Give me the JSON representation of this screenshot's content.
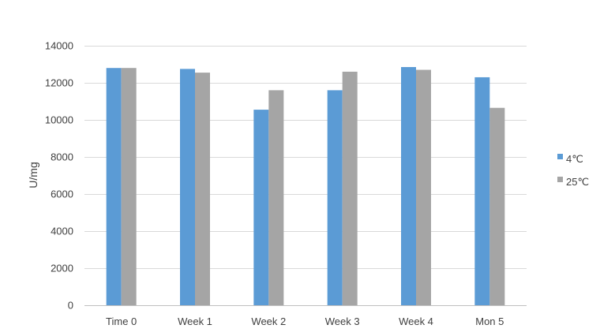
{
  "chart_data": {
    "type": "bar",
    "title": "",
    "xlabel": "",
    "ylabel": "U/mg",
    "ylim": [
      0,
      14000
    ],
    "yticks": [
      0,
      2000,
      4000,
      6000,
      8000,
      10000,
      12000,
      14000
    ],
    "grid": true,
    "legend_position": "right",
    "categories": [
      "Time 0",
      "Week 1",
      "Week 2",
      "Week 3",
      "Week 4",
      "Mon 5"
    ],
    "series": [
      {
        "name": "4℃",
        "color": "#5b9bd5",
        "values": [
          12800,
          12750,
          10550,
          11600,
          12850,
          12300
        ]
      },
      {
        "name": "25℃",
        "color": "#a5a5a5",
        "values": [
          12800,
          12550,
          11600,
          12600,
          12700,
          10650
        ]
      }
    ]
  }
}
